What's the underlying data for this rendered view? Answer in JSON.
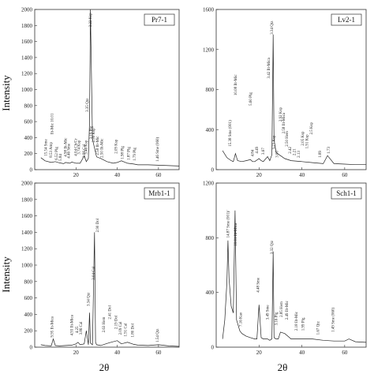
{
  "y_axis_title": "Intensity",
  "x_axis_title": "2θ",
  "chart_data": [
    {
      "type": "line",
      "panel_label": "Pr7-1",
      "xlim": [
        0,
        70
      ],
      "ylim": [
        0,
        2000
      ],
      "yticks": [
        0,
        200,
        400,
        600,
        800,
        1000,
        1200,
        1400,
        1600,
        1800,
        2000
      ],
      "xticks": [
        20,
        40,
        60
      ],
      "series": [
        {
          "x": [
            3,
            5,
            8,
            10,
            12,
            14,
            15,
            17,
            18,
            20,
            22,
            24,
            25,
            26,
            26.6,
            27,
            28,
            30,
            32,
            35,
            38,
            40,
            42,
            45,
            48,
            50,
            55,
            60,
            65,
            70
          ],
          "y": [
            150,
            110,
            90,
            100,
            85,
            75,
            90,
            80,
            95,
            80,
            80,
            170,
            100,
            140,
            600,
            2000,
            380,
            160,
            140,
            100,
            80,
            90,
            110,
            80,
            70,
            60,
            60,
            55,
            50,
            45
          ]
        }
      ],
      "peaks": [
        {
          "x": 9,
          "y": 440,
          "text": "Ilt-Mic 10.01"
        },
        {
          "x": 6,
          "y": 170,
          "text": "15.54 Sme"
        },
        {
          "x": 8.5,
          "y": 150,
          "text": "8.53 Amp"
        },
        {
          "x": 11,
          "y": 120,
          "text": "6.52 Plg"
        },
        {
          "x": 13,
          "y": 110,
          "text": "5.84"
        },
        {
          "x": 15.5,
          "y": 160,
          "text": "4.98 Ilt-Mic"
        },
        {
          "x": 17,
          "y": 140,
          "text": "4.46 Sme"
        },
        {
          "x": 20.5,
          "y": 170,
          "text": "4.04 Ch/Cr"
        },
        {
          "x": 22,
          "y": 190,
          "text": "3.74 Ksp"
        },
        {
          "x": 24.5,
          "y": 150,
          "text": "3.86 Cal"
        },
        {
          "x": 25.5,
          "y": 190,
          "text": "3.46 Ksp"
        },
        {
          "x": 26,
          "y": 720,
          "text": "3.35 Qtz"
        },
        {
          "x": 27.5,
          "y": 1780,
          "text": "3.22 Ksp"
        },
        {
          "x": 28,
          "y": 380,
          "text": "3.19 Plg"
        },
        {
          "x": 29,
          "y": 340,
          "text": "2.99 Ksp"
        },
        {
          "x": 31,
          "y": 180,
          "text": "2.58 Ilt-Mic"
        },
        {
          "x": 33,
          "y": 150,
          "text": "2.50 Ilt-Mic"
        },
        {
          "x": 40,
          "y": 200,
          "text": "2.09 Ksp"
        },
        {
          "x": 43,
          "y": 130,
          "text": "1.98 Plg"
        },
        {
          "x": 46,
          "y": 120,
          "text": "1.87 Plg"
        },
        {
          "x": 49,
          "y": 110,
          "text": "1.79 Plg"
        },
        {
          "x": 60,
          "y": 100,
          "text": "1.46 Sme (060)"
        }
      ]
    },
    {
      "type": "line",
      "panel_label": "Lv2-1",
      "xlim": [
        0,
        70
      ],
      "ylim": [
        0,
        1600
      ],
      "yticks": [
        0,
        400,
        800,
        1200,
        1600
      ],
      "xticks": [
        20,
        40,
        60
      ],
      "series": [
        {
          "x": [
            3,
            5,
            7,
            8,
            9,
            10,
            12,
            14,
            16,
            17,
            18,
            20,
            21,
            22,
            24,
            25,
            26,
            26.6,
            27,
            28,
            30,
            32,
            35,
            40,
            45,
            50,
            52,
            55,
            60,
            65,
            70
          ],
          "y": [
            190,
            120,
            90,
            80,
            160,
            90,
            80,
            90,
            100,
            80,
            80,
            110,
            90,
            80,
            130,
            90,
            150,
            1350,
            300,
            170,
            140,
            110,
            90,
            80,
            70,
            60,
            140,
            60,
            55,
            50,
            50
          ]
        }
      ],
      "peaks": [
        {
          "x": 7,
          "y": 230,
          "text": "15.38 Sme (001)"
        },
        {
          "x": 9.5,
          "y": 740,
          "text": "10.08 Ilt-Mic"
        },
        {
          "x": 16.5,
          "y": 640,
          "text": "5.60 Plg"
        },
        {
          "x": 17.5,
          "y": 130,
          "text": "4.84"
        },
        {
          "x": 19.5,
          "y": 160,
          "text": "4.49"
        },
        {
          "x": 22.5,
          "y": 150,
          "text": "3.67"
        },
        {
          "x": 25,
          "y": 910,
          "text": "3.42 Ilt-Mica"
        },
        {
          "x": 26.6,
          "y": 1350,
          "text": "3.34 Qtz"
        },
        {
          "x": 27.5,
          "y": 200,
          "text": "3.23 Ksp"
        },
        {
          "x": 29,
          "y": 120,
          "text": "3.00"
        },
        {
          "x": 30.5,
          "y": 480,
          "text": "2.92 Ksp"
        },
        {
          "x": 32,
          "y": 360,
          "text": "2.58 Ilt-Mica"
        },
        {
          "x": 33.5,
          "y": 230,
          "text": "2.50 Hem"
        },
        {
          "x": 35,
          "y": 160,
          "text": "2.42"
        },
        {
          "x": 37,
          "y": 140,
          "text": "2.21"
        },
        {
          "x": 39,
          "y": 120,
          "text": "2.13"
        },
        {
          "x": 41,
          "y": 240,
          "text": "2.05 Ksp"
        },
        {
          "x": 43,
          "y": 210,
          "text": "1.91 Ksp"
        },
        {
          "x": 45,
          "y": 350,
          "text": "2.5 Ksp"
        },
        {
          "x": 49,
          "y": 120,
          "text": "1.89"
        },
        {
          "x": 53,
          "y": 160,
          "text": "1.73"
        }
      ]
    },
    {
      "type": "line",
      "panel_label": "Mrb1-1",
      "xlim": [
        0,
        70
      ],
      "ylim": [
        0,
        2000
      ],
      "yticks": [
        0,
        200,
        400,
        600,
        800,
        1000,
        1200,
        1400,
        1600,
        1800,
        2000
      ],
      "xticks": [
        20,
        40,
        60
      ],
      "series": [
        {
          "x": [
            3,
            5,
            8,
            9,
            10,
            12,
            15,
            18,
            20,
            21,
            22,
            24,
            25,
            26,
            26.6,
            27,
            28,
            29,
            29.5,
            30,
            31,
            32,
            35,
            37,
            40,
            42,
            45,
            48,
            50,
            55,
            60,
            65,
            70
          ],
          "y": [
            30,
            20,
            15,
            100,
            20,
            15,
            20,
            25,
            40,
            60,
            30,
            40,
            200,
            30,
            420,
            50,
            30,
            1400,
            60,
            30,
            25,
            20,
            45,
            60,
            80,
            40,
            60,
            35,
            25,
            20,
            30,
            15,
            10
          ]
        }
      ],
      "peaks": [
        {
          "x": 9,
          "y": 120,
          "text": "9.95 Ilt-Mica"
        },
        {
          "x": 18.5,
          "y": 140,
          "text": "4.93 Ilt-Mica"
        },
        {
          "x": 21,
          "y": 170,
          "text": "4.25"
        },
        {
          "x": 23,
          "y": 150,
          "text": "3.86 Cal"
        },
        {
          "x": 26.6,
          "y": 500,
          "text": "3.34 Qtz"
        },
        {
          "x": 29,
          "y": 820,
          "text": "3.04 Cal"
        },
        {
          "x": 31,
          "y": 1400,
          "text": "2.90 Dol"
        },
        {
          "x": 34,
          "y": 180,
          "text": "2.63 Hem"
        },
        {
          "x": 37,
          "y": 340,
          "text": "2.41 Dol"
        },
        {
          "x": 40,
          "y": 220,
          "text": "2.19 Dol"
        },
        {
          "x": 42,
          "y": 150,
          "text": "2.09 Cal"
        },
        {
          "x": 44.5,
          "y": 130,
          "text": "1.91 Cal"
        },
        {
          "x": 48,
          "y": 120,
          "text": "1.80 Dol"
        },
        {
          "x": 60,
          "y": 60,
          "text": "1.54 Qtz"
        }
      ]
    },
    {
      "type": "line",
      "panel_label": "Sch1-1",
      "xlim": [
        0,
        70
      ],
      "ylim": [
        0,
        1200
      ],
      "yticks": [
        0,
        400,
        800,
        1200
      ],
      "xticks": [
        20,
        40,
        60
      ],
      "series": [
        {
          "x": [
            3,
            4,
            5,
            5.5,
            6,
            7,
            8,
            8.8,
            9.5,
            11,
            12,
            14,
            16,
            18,
            19,
            20,
            21,
            22,
            24,
            25,
            26,
            26.6,
            27,
            28,
            29,
            30,
            32,
            35,
            40,
            45,
            50,
            55,
            60,
            62,
            65,
            70
          ],
          "y": [
            60,
            200,
            480,
            780,
            500,
            300,
            250,
            1000,
            200,
            120,
            100,
            80,
            70,
            60,
            60,
            310,
            70,
            60,
            60,
            50,
            60,
            700,
            70,
            60,
            60,
            110,
            100,
            60,
            60,
            60,
            50,
            45,
            45,
            60,
            40,
            35
          ]
        }
      ],
      "peaks": [
        {
          "x": 6,
          "y": 800,
          "text": "14.87 Sme (001)/"
        },
        {
          "x": 9.5,
          "y": 740,
          "text": "10.01 Ilt-Mica"
        },
        {
          "x": 12,
          "y": 150,
          "text": "7.16 Kao"
        },
        {
          "x": 20,
          "y": 400,
          "text": "4.48 Sme"
        },
        {
          "x": 24.5,
          "y": 200,
          "text": "3.49 Sme"
        },
        {
          "x": 26.6,
          "y": 680,
          "text": "3.32 Qtz"
        },
        {
          "x": 28.5,
          "y": 160,
          "text": "3.16 Plg"
        },
        {
          "x": 31,
          "y": 220,
          "text": "2.85 Hem"
        },
        {
          "x": 33.5,
          "y": 200,
          "text": "2.49 Ilt-Mic"
        },
        {
          "x": 38,
          "y": 120,
          "text": "2.18 Ilt-Mic"
        },
        {
          "x": 41,
          "y": 120,
          "text": "1.99 Plg"
        },
        {
          "x": 48,
          "y": 90,
          "text": "1.67 Qtz"
        },
        {
          "x": 55,
          "y": 110,
          "text": "1.49 Sme (060)"
        }
      ]
    }
  ]
}
